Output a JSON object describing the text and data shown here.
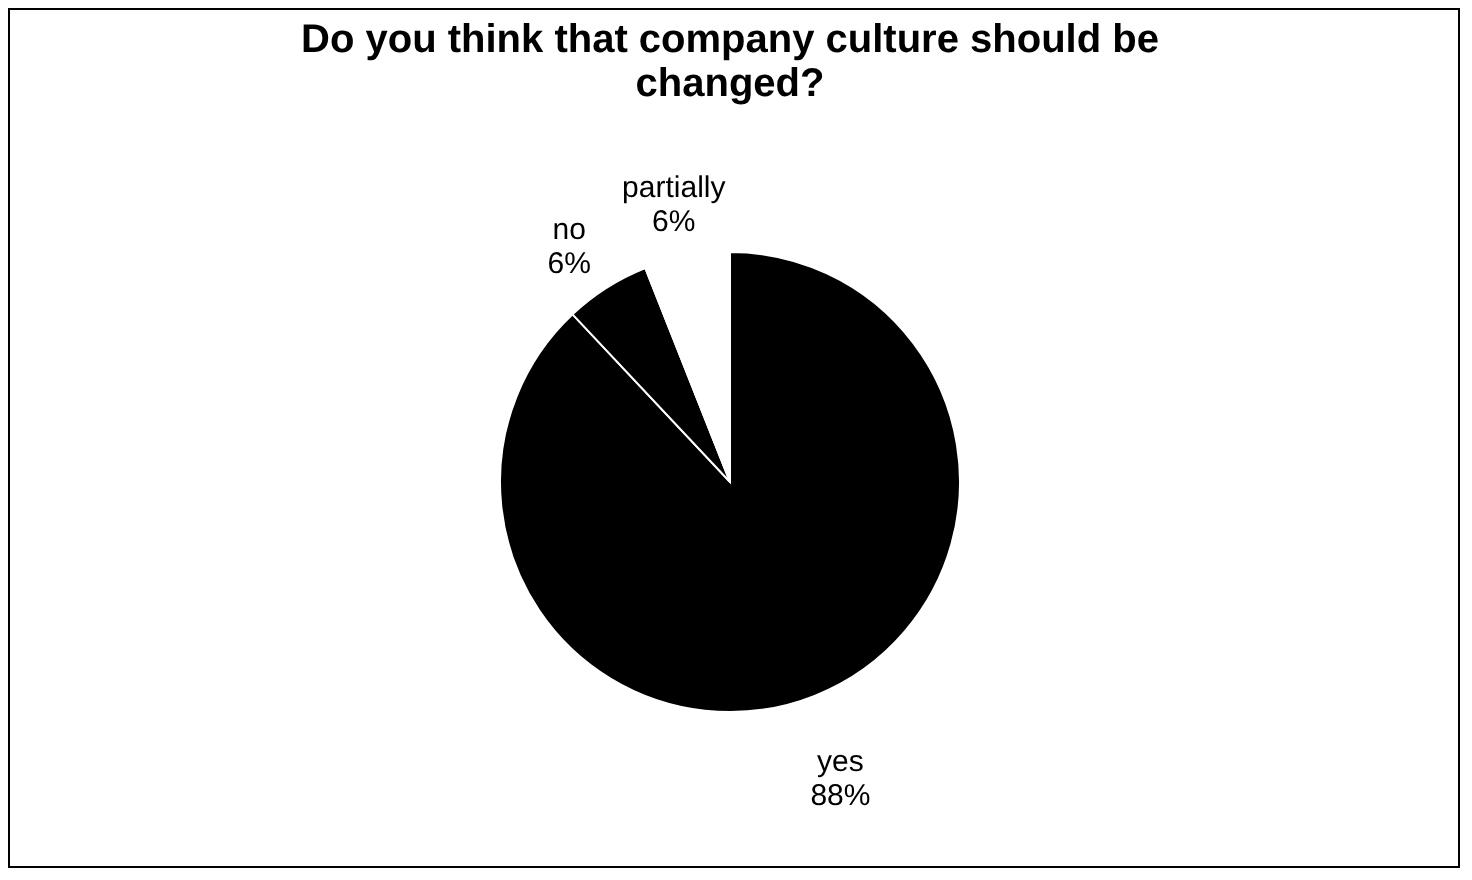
{
  "chart_data": {
    "type": "pie",
    "title": "Do you think that company culture should be changed?",
    "categories": [
      "yes",
      "no",
      "partially"
    ],
    "values": [
      88,
      6,
      6
    ],
    "value_labels": [
      "88%",
      "6%",
      "6%"
    ],
    "colors": [
      "#000000",
      "#000000",
      "#ffffff"
    ]
  }
}
